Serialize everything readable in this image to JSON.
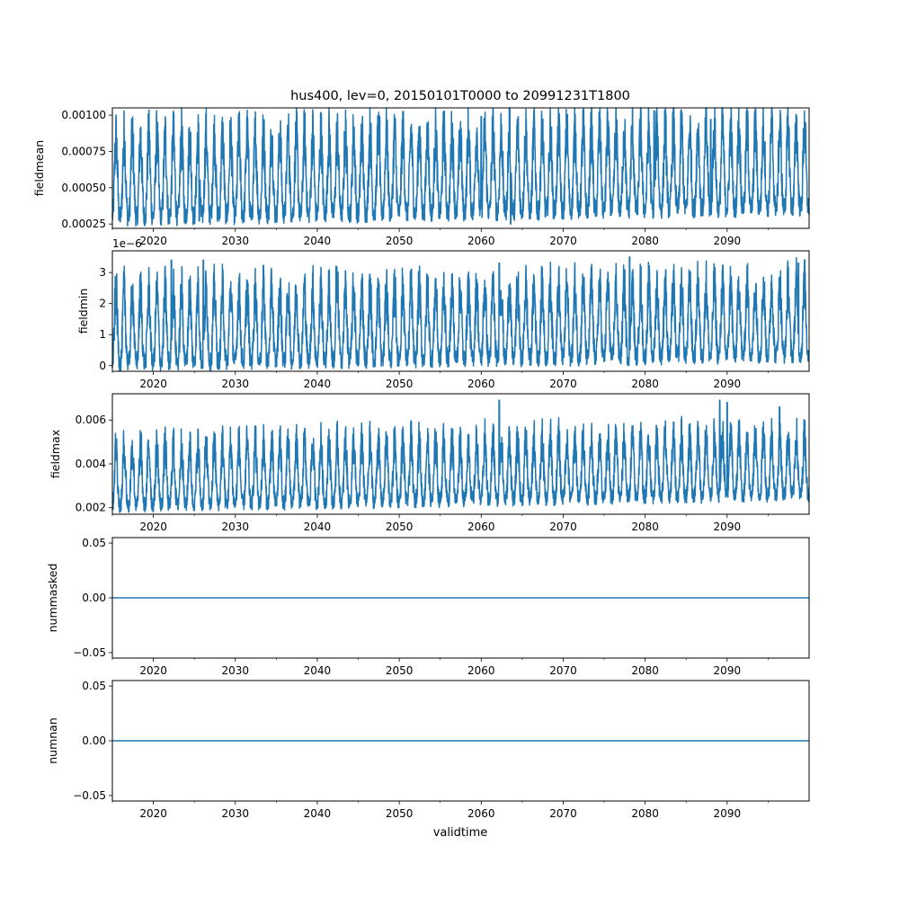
{
  "title": "hus400, lev=0, 20150101T0000 to 20991231T1800",
  "xlabel": "validtime",
  "x_tick_labels": [
    "2020",
    "2030",
    "2040",
    "2050",
    "2060",
    "2070",
    "2080",
    "2090"
  ],
  "line_color": "#1f77b4",
  "chart_data": [
    {
      "type": "line",
      "name": "fieldmean",
      "ylabel": "fieldmean",
      "ylim": [
        0.00022,
        0.00105
      ],
      "xlim": [
        "2015-01-01",
        "2099-12-31"
      ],
      "y_tick_labels": [
        "0.00025",
        "0.00050",
        "0.00075",
        "0.00100"
      ],
      "y_ticks": [
        0.00025,
        0.0005,
        0.00075,
        0.001
      ],
      "offset_text": "",
      "season_low": 0.0003,
      "season_high": 0.00085,
      "trend_per_year": 8e-07,
      "peak_highlights": [
        [
          2036.4,
          0.00093
        ],
        [
          2047.6,
          0.00099
        ],
        [
          2060.0,
          0.00099
        ],
        [
          2081.1,
          0.00103
        ],
        [
          2088.0,
          0.00097
        ]
      ],
      "min_highlights": [
        [
          2063.6,
          0.00025
        ],
        [
          2025.6,
          0.00027
        ]
      ]
    },
    {
      "type": "line",
      "name": "fieldmin",
      "ylabel": "fieldmin",
      "ylim": [
        -1.8e-07,
        3.7e-06
      ],
      "xlim": [
        "2015-01-01",
        "2099-12-31"
      ],
      "y_tick_labels": [
        "0",
        "1",
        "2",
        "3"
      ],
      "y_ticks": [
        0,
        1e-06,
        2e-06,
        3e-06
      ],
      "offset_text": "1e−6",
      "season_low": 1e-07,
      "season_high": 2.4e-06,
      "trend_per_year": 3e-09,
      "peak_highlights": [
        [
          2022.2,
          3.4e-06
        ],
        [
          2026.1,
          3.4e-06
        ],
        [
          2042.3,
          3.2e-06
        ],
        [
          2062.2,
          3.3e-06
        ],
        [
          2078.1,
          3.5e-06
        ],
        [
          2098.7,
          3.3e-06
        ]
      ],
      "min_highlights": []
    },
    {
      "type": "line",
      "name": "fieldmax",
      "ylabel": "fieldmax",
      "ylim": [
        0.0017,
        0.0072
      ],
      "xlim": [
        "2015-01-01",
        "2099-12-31"
      ],
      "y_tick_labels": [
        "0.002",
        "0.004",
        "0.006"
      ],
      "y_ticks": [
        0.002,
        0.004,
        0.006
      ],
      "offset_text": "",
      "season_low": 0.0021,
      "season_high": 0.0048,
      "trend_per_year": 6e-06,
      "peak_highlights": [
        [
          2062.2,
          0.0069
        ],
        [
          2089.1,
          0.0069
        ],
        [
          2090.0,
          0.0068
        ],
        [
          2096.4,
          0.0066
        ]
      ],
      "min_highlights": [
        [
          2017.0,
          0.0018
        ]
      ]
    },
    {
      "type": "line",
      "name": "nummasked",
      "ylabel": "nummasked",
      "ylim": [
        -0.055,
        0.055
      ],
      "xlim": [
        "2015-01-01",
        "2099-12-31"
      ],
      "y_tick_labels": [
        "−0.05",
        "0.00",
        "0.05"
      ],
      "y_ticks": [
        -0.05,
        0,
        0.05
      ],
      "offset_text": "",
      "constant_value": 0
    },
    {
      "type": "line",
      "name": "numnan",
      "ylabel": "numnan",
      "ylim": [
        -0.055,
        0.055
      ],
      "xlim": [
        "2015-01-01",
        "2099-12-31"
      ],
      "y_tick_labels": [
        "−0.05",
        "0.00",
        "0.05"
      ],
      "y_ticks": [
        -0.05,
        0,
        0.05
      ],
      "offset_text": "",
      "constant_value": 0
    }
  ]
}
